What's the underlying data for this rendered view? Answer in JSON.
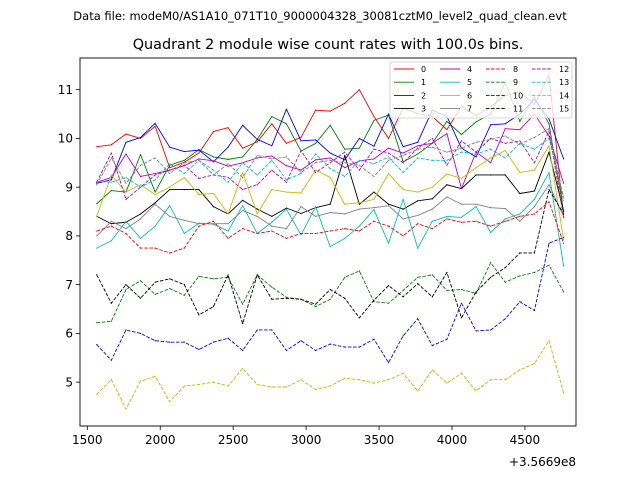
{
  "header": {
    "suptitle": "Data file: modeM0/AS1A10_071T10_9000004328_30081cztM0_level2_quad_clean.evt"
  },
  "chart_data": {
    "type": "line",
    "title": "Quadrant 2 module wise count rates with 100.0s bins.",
    "xlabel": "",
    "ylabel": "",
    "x_offset_label": "+3.5669e8",
    "xlim": [
      1450,
      4850
    ],
    "ylim": [
      4.1,
      11.65
    ],
    "xticks": [
      1500,
      2000,
      2500,
      3000,
      3500,
      4000,
      4500
    ],
    "xtick_labels": [
      "1500",
      "2000",
      "2500",
      "3000",
      "3500",
      "4000",
      "4500"
    ],
    "yticks": [
      5,
      6,
      7,
      8,
      9,
      10,
      11
    ],
    "ytick_labels": [
      "5",
      "6",
      "7",
      "8",
      "9",
      "10",
      "11"
    ],
    "grid": false,
    "legend_position": "top-right",
    "legend_columns": 4,
    "x": [
      1565,
      1665,
      1765,
      1865,
      1965,
      2065,
      2165,
      2265,
      2365,
      2465,
      2565,
      2665,
      2765,
      2865,
      2965,
      3065,
      3165,
      3265,
      3365,
      3465,
      3565,
      3665,
      3765,
      3865,
      3965,
      4065,
      4165,
      4265,
      4365,
      4465,
      4565,
      4665,
      4765
    ],
    "series": [
      {
        "name": "0",
        "color": "#ff0000",
        "dash": "solid",
        "values": [
          9.83,
          9.87,
          10.09,
          10.0,
          10.25,
          9.4,
          9.51,
          9.7,
          10.14,
          10.22,
          9.8,
          9.93,
          10.3,
          9.9,
          10.02,
          10.58,
          10.56,
          10.72,
          11.0,
          10.45,
          10.0,
          10.62,
          10.51,
          10.45,
          10.18,
          10.66,
          10.47,
          10.65,
          10.88,
          10.95,
          10.7,
          11.3,
          8.4
        ]
      },
      {
        "name": "1",
        "color": "#008000",
        "dash": "solid",
        "values": [
          8.66,
          8.93,
          8.9,
          9.67,
          8.9,
          9.45,
          9.55,
          9.77,
          9.62,
          9.57,
          9.62,
          9.98,
          10.45,
          10.3,
          9.74,
          9.9,
          10.27,
          9.78,
          9.8,
          10.37,
          10.48,
          9.52,
          9.68,
          9.9,
          10.35,
          10.08,
          10.34,
          10.5,
          11.15,
          10.35,
          10.85,
          10.3,
          8.5
        ]
      },
      {
        "name": "2",
        "color": "#0000ff",
        "dash": "solid",
        "values": [
          9.08,
          9.15,
          9.92,
          10.02,
          10.31,
          9.82,
          9.73,
          9.76,
          9.52,
          9.82,
          10.27,
          9.98,
          9.85,
          10.6,
          9.95,
          9.97,
          9.7,
          9.56,
          10.0,
          9.84,
          10.5,
          9.83,
          9.92,
          10.58,
          10.45,
          9.8,
          9.62,
          10.28,
          10.3,
          10.5,
          10.8,
          10.4,
          9.58
        ]
      },
      {
        "name": "3",
        "color": "#000000",
        "dash": "solid",
        "values": [
          8.4,
          8.25,
          8.28,
          8.45,
          8.68,
          8.95,
          8.95,
          8.95,
          8.6,
          8.45,
          8.73,
          8.55,
          8.4,
          8.57,
          8.46,
          8.58,
          8.65,
          9.65,
          8.65,
          8.9,
          8.65,
          8.55,
          8.72,
          8.76,
          9.05,
          8.97,
          9.25,
          9.25,
          9.25,
          8.87,
          8.92,
          9.72,
          8.5
        ]
      },
      {
        "name": "4",
        "color": "#bf00bf",
        "dash": "solid",
        "values": [
          9.1,
          9.2,
          9.68,
          9.22,
          9.28,
          9.35,
          9.44,
          9.58,
          9.54,
          9.43,
          9.5,
          9.6,
          9.64,
          9.44,
          9.35,
          9.56,
          9.6,
          9.4,
          9.54,
          9.58,
          9.8,
          9.7,
          9.85,
          9.9,
          10.1,
          8.97,
          9.72,
          9.5,
          10.2,
          10.18,
          10.5,
          10.05,
          9.08
        ]
      },
      {
        "name": "5",
        "color": "#00bfbf",
        "dash": "solid",
        "values": [
          7.75,
          7.9,
          8.3,
          7.95,
          8.2,
          8.62,
          8.05,
          8.26,
          8.24,
          8.1,
          8.62,
          8.05,
          8.28,
          8.55,
          8.02,
          8.6,
          7.78,
          7.95,
          8.2,
          8.54,
          7.85,
          8.75,
          7.75,
          8.3,
          8.4,
          8.38,
          8.6,
          8.07,
          8.35,
          8.45,
          8.75,
          9.3,
          7.38
        ]
      },
      {
        "name": "6",
        "color": "#bfbf00",
        "dash": "solid",
        "values": [
          8.4,
          9.25,
          8.9,
          9.05,
          8.85,
          9.0,
          9.2,
          8.85,
          8.87,
          8.45,
          9.3,
          8.45,
          8.95,
          8.9,
          8.88,
          9.35,
          9.2,
          8.65,
          8.68,
          8.75,
          9.28,
          8.95,
          8.9,
          9.0,
          9.27,
          9.18,
          9.4,
          9.6,
          9.75,
          9.3,
          9.35,
          9.85,
          7.92
        ]
      },
      {
        "name": "7",
        "color": "#808080",
        "dash": "solid",
        "values": [
          8.0,
          8.3,
          8.15,
          8.35,
          8.65,
          8.4,
          8.32,
          8.25,
          8.25,
          8.25,
          8.52,
          8.4,
          8.2,
          8.15,
          8.6,
          8.4,
          8.48,
          8.45,
          8.55,
          8.58,
          8.62,
          8.35,
          8.42,
          8.55,
          8.8,
          8.65,
          8.65,
          8.58,
          8.56,
          8.3,
          8.6,
          9.05,
          8.4
        ]
      },
      {
        "name": "8",
        "color": "#ff0000",
        "dash": "dashed",
        "values": [
          8.1,
          8.2,
          8.05,
          7.75,
          7.75,
          7.65,
          7.75,
          8.2,
          8.3,
          7.95,
          8.15,
          8.05,
          8.1,
          7.95,
          8.05,
          8.05,
          8.1,
          8.15,
          8.1,
          8.3,
          8.2,
          8.0,
          8.25,
          8.15,
          8.35,
          8.28,
          8.3,
          8.2,
          8.3,
          8.4,
          8.45,
          8.7,
          7.85
        ]
      },
      {
        "name": "9",
        "color": "#008000",
        "dash": "dashed",
        "values": [
          6.22,
          6.25,
          6.9,
          7.08,
          6.8,
          6.92,
          6.78,
          7.17,
          7.12,
          7.15,
          6.6,
          7.2,
          6.95,
          6.74,
          6.7,
          6.55,
          6.7,
          7.15,
          7.28,
          6.65,
          6.62,
          6.88,
          7.15,
          7.2,
          6.88,
          6.9,
          6.82,
          7.45,
          7.05,
          7.18,
          7.25,
          7.4,
          6.85
        ]
      },
      {
        "name": "10",
        "color": "#0000ff",
        "dash": "dashed",
        "values": [
          5.77,
          5.45,
          6.07,
          6.0,
          5.85,
          5.82,
          5.82,
          5.67,
          5.82,
          5.9,
          5.65,
          6.07,
          6.07,
          5.65,
          5.85,
          5.65,
          5.78,
          5.72,
          5.72,
          5.88,
          5.4,
          5.95,
          6.3,
          5.75,
          5.88,
          6.62,
          6.05,
          6.07,
          6.3,
          6.65,
          6.47,
          7.85,
          7.97
        ]
      },
      {
        "name": "11",
        "color": "#000000",
        "dash": "dashed",
        "values": [
          7.2,
          6.62,
          7.0,
          6.72,
          7.05,
          7.12,
          7.0,
          6.38,
          6.55,
          7.2,
          6.2,
          7.2,
          6.7,
          6.72,
          6.7,
          6.6,
          6.9,
          6.72,
          6.32,
          6.68,
          6.98,
          6.75,
          7.02,
          6.75,
          7.25,
          6.32,
          6.85,
          7.15,
          7.35,
          7.65,
          7.65,
          8.95,
          8.45
        ]
      },
      {
        "name": "12",
        "color": "#bf00bf",
        "dash": "dashed",
        "values": [
          9.1,
          9.7,
          8.75,
          9.0,
          9.25,
          9.35,
          9.45,
          9.18,
          9.25,
          9.2,
          8.95,
          9.05,
          9.35,
          9.1,
          9.75,
          9.3,
          9.5,
          9.72,
          9.35,
          9.78,
          9.7,
          9.5,
          9.8,
          10.0,
          9.45,
          9.95,
          9.72,
          10.0,
          9.9,
          9.95,
          9.5,
          10.15,
          8.38
        ]
      },
      {
        "name": "13",
        "color": "#00bfbf",
        "dash": "dashed",
        "values": [
          9.12,
          9.1,
          9.2,
          9.0,
          9.15,
          9.48,
          9.28,
          9.55,
          9.35,
          9.1,
          9.5,
          9.25,
          9.55,
          9.15,
          9.28,
          9.68,
          9.38,
          9.22,
          9.55,
          9.48,
          9.62,
          9.3,
          9.6,
          9.55,
          9.55,
          9.72,
          9.68,
          9.78,
          9.6,
          9.9,
          9.78,
          10.0,
          8.8
        ]
      },
      {
        "name": "14",
        "color": "#bfbf00",
        "dash": "dashed",
        "values": [
          4.75,
          5.05,
          4.45,
          5.02,
          5.12,
          4.6,
          4.92,
          4.95,
          5.0,
          4.92,
          5.28,
          4.95,
          4.9,
          4.9,
          5.05,
          4.85,
          4.92,
          5.08,
          5.05,
          4.98,
          5.05,
          5.18,
          4.82,
          5.25,
          4.98,
          5.18,
          4.82,
          5.05,
          5.05,
          5.25,
          5.38,
          5.85,
          4.78
        ]
      },
      {
        "name": "15",
        "color": "#808080",
        "dash": "dashed",
        "values": [
          9.05,
          9.6,
          9.08,
          9.45,
          9.6,
          9.28,
          9.5,
          9.55,
          9.25,
          9.48,
          9.2,
          9.65,
          9.58,
          9.62,
          9.3,
          9.5,
          9.55,
          9.5,
          9.45,
          9.22,
          9.55,
          9.65,
          9.78,
          9.82,
          9.72,
          9.8,
          9.92,
          9.98,
          10.05,
          9.88,
          10.02,
          10.2,
          8.72
        ]
      }
    ]
  }
}
